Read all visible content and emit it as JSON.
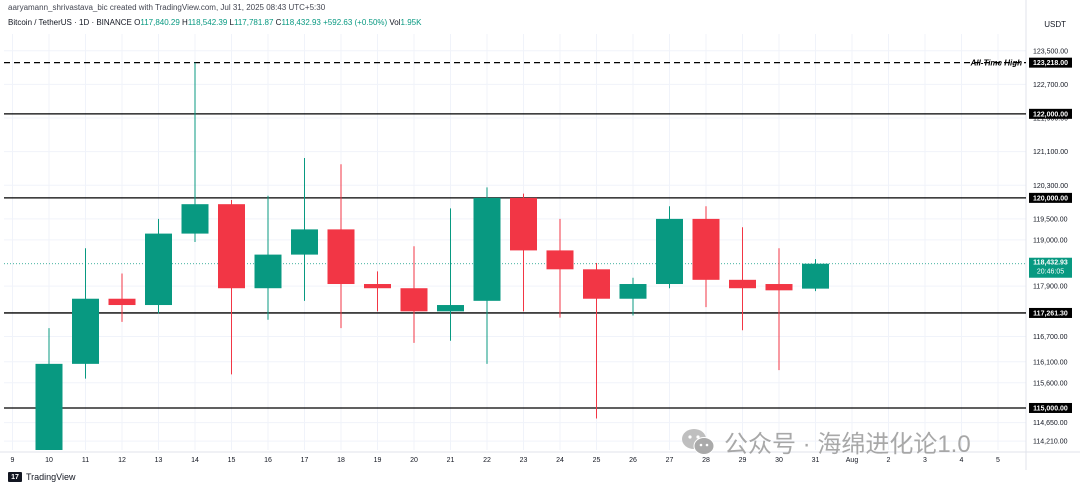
{
  "header": {
    "attribution": "aaryamann_shrivastava_bic created with TradingView.com, Jul 31, 2025 08:43 UTC+5:30",
    "symbol_line": "Bitcoin / TetherUS · 1D · BINANCE",
    "open_label": "O",
    "open": "117,840.29",
    "high_label": "H",
    "high": "118,542.39",
    "low_label": "L",
    "low": "117,781.87",
    "close_label": "C",
    "close": "118,432.93",
    "change": "+592.63 (+0.50%)",
    "vol_label": "Vol",
    "vol": "1.95K",
    "currency": "USDT"
  },
  "footer": {
    "logo_text": "17",
    "brand": "TradingView"
  },
  "watermark": {
    "text": "公众号 · 海绵进化论1.0"
  },
  "colors": {
    "up": "#089981",
    "down": "#f23645",
    "line": "#000000",
    "grid": "#f0f3fa"
  },
  "chart_data": {
    "type": "candlestick",
    "ylim": [
      114000,
      123900
    ],
    "y_ticks": [
      114210,
      114650,
      115600,
      116100,
      116700,
      117900,
      119000,
      119500,
      120300,
      121100,
      121900,
      122700,
      123500
    ],
    "y_tick_labels": [
      "114,210.00",
      "114,650.00",
      "115,600.00",
      "116,100.00",
      "116,700.00",
      "117,900.00",
      "119,000.00",
      "119,500.00",
      "120,300.00",
      "121,100.00",
      "121,900.00",
      "122,700.00",
      "123,500.00"
    ],
    "x_labels": [
      "9",
      "10",
      "11",
      "12",
      "13",
      "14",
      "15",
      "16",
      "17",
      "18",
      "19",
      "20",
      "21",
      "22",
      "23",
      "24",
      "25",
      "26",
      "27",
      "28",
      "29",
      "30",
      "31",
      "Aug",
      "2",
      "3",
      "4",
      "5"
    ],
    "candles": [
      {
        "day": "10",
        "o": 114000,
        "h": 116900,
        "l": 114000,
        "c": 116050
      },
      {
        "day": "11",
        "o": 116050,
        "h": 118800,
        "l": 115700,
        "c": 117600
      },
      {
        "day": "12",
        "o": 117600,
        "h": 118200,
        "l": 117050,
        "c": 117450
      },
      {
        "day": "13",
        "o": 117450,
        "h": 119500,
        "l": 117250,
        "c": 119150
      },
      {
        "day": "14",
        "o": 119150,
        "h": 123218,
        "l": 118950,
        "c": 119850
      },
      {
        "day": "15",
        "o": 119850,
        "h": 119950,
        "l": 115800,
        "c": 117850
      },
      {
        "day": "16",
        "o": 117850,
        "h": 120050,
        "l": 117100,
        "c": 118650
      },
      {
        "day": "17",
        "o": 118650,
        "h": 120950,
        "l": 117550,
        "c": 119250
      },
      {
        "day": "18",
        "o": 119250,
        "h": 120800,
        "l": 116900,
        "c": 117950
      },
      {
        "day": "19",
        "o": 117950,
        "h": 118250,
        "l": 117300,
        "c": 117850
      },
      {
        "day": "20",
        "o": 117850,
        "h": 118850,
        "l": 116550,
        "c": 117300
      },
      {
        "day": "21",
        "o": 117300,
        "h": 119750,
        "l": 116600,
        "c": 117450
      },
      {
        "day": "22",
        "o": 117550,
        "h": 120250,
        "l": 116050,
        "c": 120000
      },
      {
        "day": "23",
        "o": 120000,
        "h": 120100,
        "l": 117300,
        "c": 118750
      },
      {
        "day": "24",
        "o": 118750,
        "h": 119500,
        "l": 117150,
        "c": 118300
      },
      {
        "day": "25",
        "o": 118300,
        "h": 118450,
        "l": 114750,
        "c": 117600
      },
      {
        "day": "26",
        "o": 117600,
        "h": 118100,
        "l": 117200,
        "c": 117950
      },
      {
        "day": "27",
        "o": 117950,
        "h": 119800,
        "l": 117850,
        "c": 119500
      },
      {
        "day": "28",
        "o": 119500,
        "h": 119800,
        "l": 117400,
        "c": 118050
      },
      {
        "day": "29",
        "o": 118050,
        "h": 119300,
        "l": 116850,
        "c": 117850
      },
      {
        "day": "30",
        "o": 117950,
        "h": 118800,
        "l": 115900,
        "c": 117800
      },
      {
        "day": "31",
        "o": 117840.29,
        "h": 118542.39,
        "l": 117781.87,
        "c": 118432.93
      }
    ],
    "hlines": [
      {
        "value": 123218,
        "label": "123,218.00",
        "style": "dashed",
        "annotation": "All-Time High"
      },
      {
        "value": 122000,
        "label": "122,000.00",
        "style": "solid",
        "annotation": ""
      },
      {
        "value": 120000,
        "label": "120,000.00",
        "style": "solid",
        "annotation": ""
      },
      {
        "value": 117261.3,
        "label": "117,261.30",
        "style": "solid",
        "annotation": ""
      },
      {
        "value": 115000,
        "label": "115,000.00",
        "style": "solid",
        "annotation": ""
      }
    ],
    "last_price": {
      "value": 118432.93,
      "label": "118,432.93",
      "countdown": "20:46:05"
    }
  }
}
